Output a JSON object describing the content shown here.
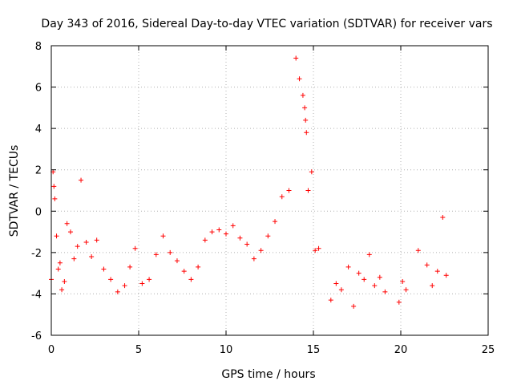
{
  "chart_data": {
    "type": "scatter",
    "title": "Day 343 of 2016, Sidereal Day-to-day VTEC variation (SDTVAR) for receiver vars",
    "xlabel": "GPS time / hours",
    "ylabel": "SDTVAR / TECUs",
    "xlim": [
      0,
      25
    ],
    "ylim": [
      -6,
      8
    ],
    "xticks": [
      0,
      5,
      10,
      15,
      20,
      25
    ],
    "yticks": [
      -6,
      -4,
      -2,
      0,
      2,
      4,
      6,
      8
    ],
    "xtick_labels": [
      "0",
      "5",
      "10",
      "15",
      "20",
      "25"
    ],
    "ytick_labels": [
      "-6",
      "-4",
      "-2",
      "0",
      "2",
      "4",
      "6",
      "8"
    ],
    "grid": true,
    "marker": "+",
    "series": [
      {
        "name": "SDTVAR",
        "color": "#ff0000",
        "x": [
          0.0,
          0.1,
          0.15,
          0.2,
          0.3,
          0.4,
          0.5,
          0.6,
          0.75,
          0.9,
          1.1,
          1.3,
          1.5,
          1.7,
          2.0,
          2.3,
          2.6,
          3.0,
          3.4,
          3.8,
          4.2,
          4.5,
          4.8,
          5.2,
          5.6,
          6.0,
          6.4,
          6.8,
          7.2,
          7.6,
          8.0,
          8.4,
          8.8,
          9.2,
          9.6,
          10.0,
          10.4,
          10.8,
          11.2,
          11.6,
          12.0,
          12.4,
          12.8,
          13.2,
          13.6,
          14.0,
          14.2,
          14.4,
          14.5,
          14.55,
          14.6,
          14.7,
          14.9,
          15.1,
          15.3,
          16.0,
          16.3,
          16.6,
          17.0,
          17.3,
          17.6,
          17.9,
          18.2,
          18.5,
          18.8,
          19.1,
          19.9,
          20.1,
          20.3,
          21.0,
          21.5,
          21.8,
          22.1,
          22.4,
          22.6
        ],
        "y": [
          -3.3,
          1.9,
          1.2,
          0.6,
          -1.2,
          -2.8,
          -2.5,
          -3.8,
          -3.4,
          -0.6,
          -1.0,
          -2.3,
          -1.7,
          1.5,
          -1.5,
          -2.2,
          -1.4,
          -2.8,
          -3.3,
          -3.9,
          -3.6,
          -2.7,
          -1.8,
          -3.5,
          -3.3,
          -2.1,
          -1.2,
          -2.0,
          -2.4,
          -2.9,
          -3.3,
          -2.7,
          -1.4,
          -1.0,
          -0.9,
          -1.1,
          -0.7,
          -1.3,
          -1.6,
          -2.3,
          -1.9,
          -1.2,
          -0.5,
          0.7,
          1.0,
          7.4,
          6.4,
          5.6,
          5.0,
          4.4,
          3.8,
          1.0,
          1.9,
          -1.9,
          -1.8,
          -4.3,
          -3.5,
          -3.8,
          -2.7,
          -4.6,
          -3.0,
          -3.3,
          -2.1,
          -3.6,
          -3.2,
          -3.9,
          -4.4,
          -3.4,
          -3.8,
          -1.9,
          -2.6,
          -3.6,
          -2.9,
          -0.3,
          -3.1
        ]
      }
    ]
  }
}
